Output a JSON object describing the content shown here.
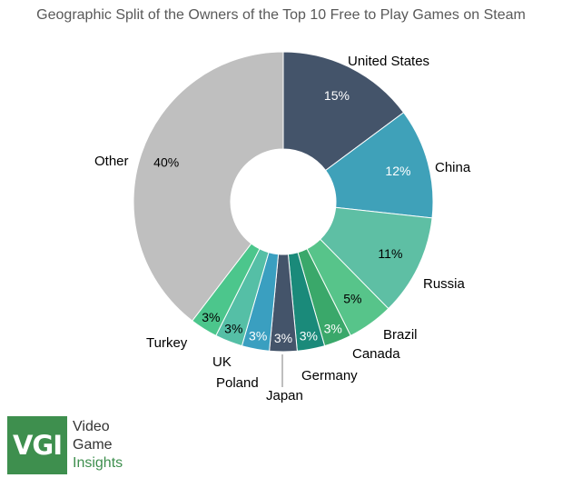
{
  "chart_data": {
    "type": "pie",
    "title": "Geographic Split of the Owners of the Top 10 Free to Play Games on Steam",
    "slices": [
      {
        "label": "United States",
        "value": 15,
        "display": "15%",
        "color": "#44546a",
        "pct_color": "#ffffff"
      },
      {
        "label": "China",
        "value": 12,
        "display": "12%",
        "color": "#3fa1b9",
        "pct_color": "#ffffff"
      },
      {
        "label": "Russia",
        "value": 11,
        "display": "11%",
        "color": "#5ebfa4",
        "pct_color": "#000000"
      },
      {
        "label": "Brazil",
        "value": 5,
        "display": "5%",
        "color": "#57c48a",
        "pct_color": "#000000"
      },
      {
        "label": "Canada",
        "value": 3,
        "display": "3%",
        "color": "#3aa86a",
        "pct_color": "#ffffff"
      },
      {
        "label": "Germany",
        "value": 3,
        "display": "3%",
        "color": "#1a8a7a",
        "pct_color": "#ffffff"
      },
      {
        "label": "Japan",
        "value": 3,
        "display": "3%",
        "color": "#44546a",
        "pct_color": "#ffffff"
      },
      {
        "label": "Poland",
        "value": 3,
        "display": "3%",
        "color": "#3a9fc0",
        "pct_color": "#ffffff"
      },
      {
        "label": "UK",
        "value": 3,
        "display": "3%",
        "color": "#55bfa6",
        "pct_color": "#000000"
      },
      {
        "label": "Turkey",
        "value": 3,
        "display": "3%",
        "color": "#4cc68c",
        "pct_color": "#000000"
      },
      {
        "label": "Other",
        "value": 40,
        "display": "40%",
        "color": "#bfbfbf",
        "pct_color": "#000000"
      }
    ],
    "hole": "donut"
  },
  "logo": {
    "mark": "VGI",
    "line1": "Video",
    "line2": "Game",
    "line3": "Insights",
    "brand_color": "#3e8f4e"
  }
}
